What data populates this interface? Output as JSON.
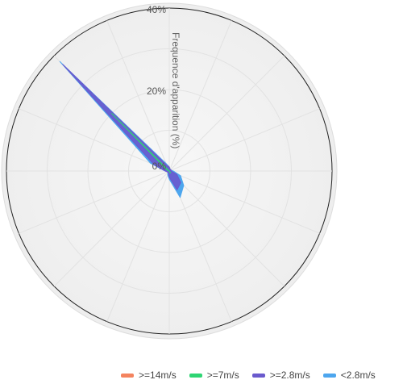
{
  "chart_data": {
    "type": "radar-area",
    "title": "",
    "radial_axis_label": "Frequence d'apparition (%)",
    "radial_ticks": [
      "0%",
      "20%",
      "40%"
    ],
    "radial_range": [
      0,
      40
    ],
    "directions": 16,
    "angle_start_deg": 0,
    "angle_order": "clockwise",
    "series": [
      {
        "name": "<2.8m/s",
        "color": "#4da6ee",
        "values": [
          1,
          0.5,
          0.5,
          0.5,
          1,
          3,
          5,
          7,
          2,
          1,
          0.5,
          0.5,
          1,
          5,
          38,
          2
        ]
      },
      {
        "name": ">=2.8m/s",
        "color": "#6a5acd",
        "values": [
          1,
          0.5,
          0.5,
          0.5,
          0.5,
          2,
          4,
          5,
          1.5,
          0.5,
          0.5,
          0.5,
          1,
          4,
          37,
          1.5
        ]
      },
      {
        "name": ">=7m/s",
        "color": "#2ed573",
        "values": [
          0,
          0,
          0,
          0,
          0,
          0,
          0.5,
          0.5,
          0,
          0,
          0,
          0,
          0,
          0.5,
          20,
          0
        ]
      },
      {
        "name": ">=14m/s",
        "color": "#f4845f",
        "values": [
          0,
          0,
          0,
          0,
          0,
          0,
          0,
          0,
          0,
          0,
          0,
          0,
          0,
          0,
          0,
          0
        ]
      }
    ],
    "legend_position": "bottom-right",
    "legend_order": [
      3,
      2,
      1,
      0
    ],
    "grid": true
  }
}
